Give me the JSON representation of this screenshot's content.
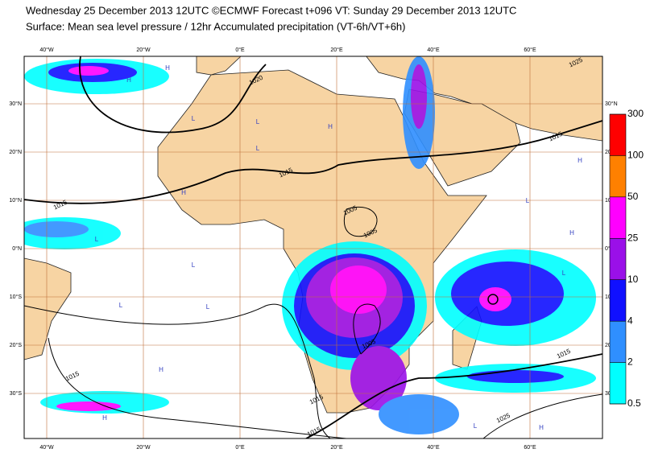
{
  "title": "Wednesday 25 December 2013 12UTC ©ECMWF Forecast t+096 VT: Sunday 29 December 2013 12UTC",
  "subtitle": "Surface: Mean sea level pressure / 12hr Accumulated precipitation (VT-6h/VT+6h)",
  "map": {
    "lon_ticks": [
      {
        "value": -40,
        "label": "40°W"
      },
      {
        "value": -20,
        "label": "20°W"
      },
      {
        "value": 0,
        "label": "0°E"
      },
      {
        "value": 20,
        "label": "20°E"
      },
      {
        "value": 40,
        "label": "40°E"
      },
      {
        "value": 60,
        "label": "60°E"
      }
    ],
    "lat_ticks": [
      {
        "value": 30,
        "label": "30°N"
      },
      {
        "value": 20,
        "label": "20°N"
      },
      {
        "value": 10,
        "label": "10°N"
      },
      {
        "value": 0,
        "label": "0°N"
      },
      {
        "value": -10,
        "label": "10°S"
      },
      {
        "value": -20,
        "label": "20°S"
      },
      {
        "value": -30,
        "label": "30°S"
      }
    ],
    "colorbar": {
      "levels": [
        0.5,
        2,
        4,
        10,
        25,
        50,
        100,
        300
      ],
      "colors": [
        "#00ffff",
        "#2f8fff",
        "#1010ff",
        "#9a10e8",
        "#ff00ff",
        "#ff8000",
        "#ff0000"
      ]
    },
    "isobar_labels": [
      1020,
      1015,
      1015,
      1015,
      1005,
      1005,
      1005,
      1015,
      1015,
      1015,
      1025,
      1015,
      1025
    ],
    "pressure_centres": [
      "H",
      "H",
      "L",
      "L",
      "H",
      "L",
      "H",
      "L",
      "L",
      "L",
      "L",
      "H",
      "H",
      "L",
      "H",
      "L",
      "H",
      "H",
      "H",
      "L"
    ]
  }
}
